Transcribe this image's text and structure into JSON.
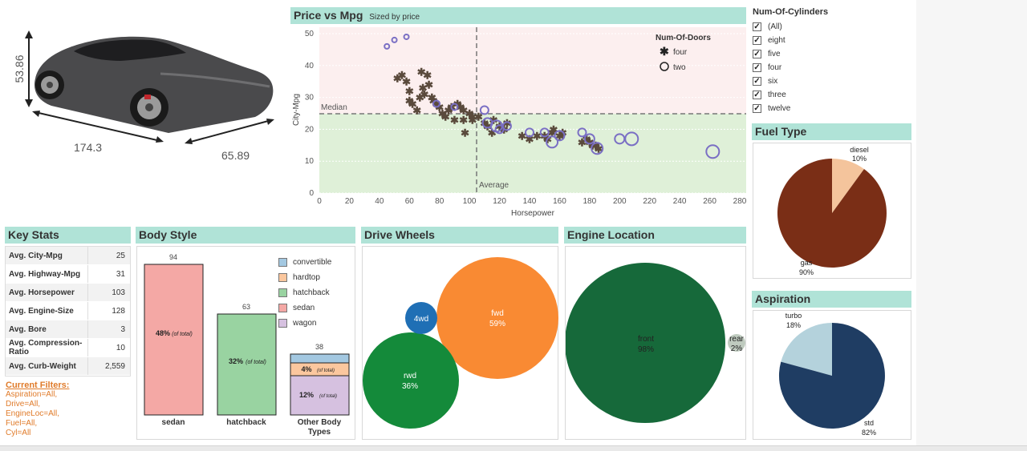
{
  "car": {
    "height_label": "53.86",
    "length_label": "174.3",
    "width_label": "65.89"
  },
  "scatter": {
    "title": "Price vs Mpg",
    "subtitle": "Sized by price",
    "xlabel": "Horsepower",
    "ylabel": "City-Mpg",
    "median_label": "Median",
    "average_label": "Average",
    "legend_title": "Num-Of-Doors",
    "legend_four": "four",
    "legend_two": "two",
    "x_ticks": [
      "0",
      "20",
      "40",
      "60",
      "80",
      "100",
      "120",
      "140",
      "160",
      "180",
      "200",
      "220",
      "240",
      "260",
      "280"
    ],
    "y_ticks": [
      "0",
      "10",
      "20",
      "30",
      "40",
      "50"
    ]
  },
  "cylinders": {
    "title": "Num-Of-Cylinders",
    "items": [
      "(All)",
      "eight",
      "five",
      "four",
      "six",
      "three",
      "twelve"
    ]
  },
  "fuel": {
    "title": "Fuel Type",
    "diesel_label": "diesel",
    "diesel_pct": "10%",
    "gas_label": "gas",
    "gas_pct": "90%"
  },
  "aspiration": {
    "title": "Aspiration",
    "turbo_label": "turbo",
    "turbo_pct": "18%",
    "std_label": "std",
    "std_pct": "82%"
  },
  "key_stats": {
    "title": "Key Stats",
    "rows": [
      {
        "label": "Avg. City-Mpg",
        "value": "25"
      },
      {
        "label": "Avg. Highway-Mpg",
        "value": "31"
      },
      {
        "label": "Avg. Horsepower",
        "value": "103"
      },
      {
        "label": "Avg. Engine-Size",
        "value": "128"
      },
      {
        "label": "Avg. Bore",
        "value": "3"
      },
      {
        "label": "Avg. Compression-Ratio",
        "value": "10"
      },
      {
        "label": "Avg. Curb-Weight",
        "value": "2,559"
      }
    ]
  },
  "filters": {
    "title": "Current Filters:",
    "lines": [
      "Aspiration=All,",
      "Drive=All,",
      "EngineLoc=All,",
      "Fuel=All,",
      "Cyl=All"
    ]
  },
  "body_style": {
    "title": "Body Style",
    "bars": [
      {
        "count": "94",
        "pct": "48%",
        "note": "(of total)",
        "label": "sedan"
      },
      {
        "count": "63",
        "pct": "32%",
        "note": "(of total)",
        "label": "hatchback"
      },
      {
        "count": "38",
        "pct_a": "4%",
        "note_a": "(of total)",
        "pct_b": "12%",
        "note_b": "(of total)",
        "label": "Other Body Types"
      }
    ],
    "legend": [
      "convertible",
      "hardtop",
      "hatchback",
      "sedan",
      "wagon"
    ]
  },
  "drive_wheels": {
    "title": "Drive Wheels",
    "fwd": "fwd",
    "fwd_pct": "59%",
    "rwd": "rwd",
    "rwd_pct": "36%",
    "fourwd": "4wd"
  },
  "engine_location": {
    "title": "Engine Location",
    "front": "front",
    "front_pct": "98%",
    "rear": "rear",
    "rear_pct": "2%"
  },
  "colors": {
    "header_bg": "#b0e3d7",
    "gas": "#7a2e16",
    "diesel": "#f4c49c",
    "std": "#1f3d63",
    "turbo": "#b4d2dc",
    "fwd": "#f98a33",
    "rwd": "#148a3a",
    "fourwd": "#1f6fb5",
    "front": "#16693a",
    "rear": "#bfcbbf",
    "sedan": "#f4a8a5",
    "hatchback": "#99d3a1",
    "convertible": "#a3c8e1",
    "hardtop": "#fbc79e",
    "wagon": "#d6c1e0"
  }
}
